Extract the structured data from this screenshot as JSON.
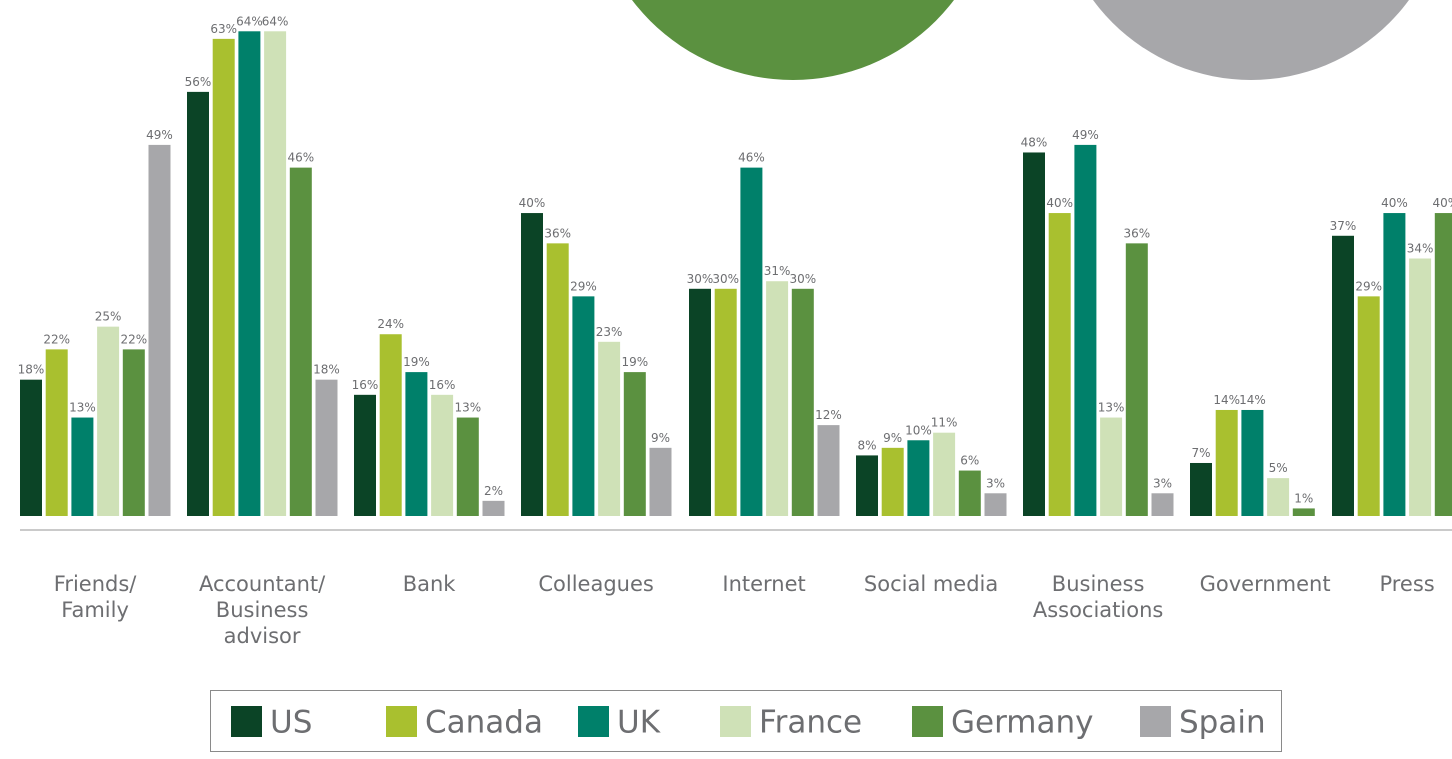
{
  "chart_data": {
    "type": "bar",
    "categories": [
      "Friends/\nFamily",
      "Accountant/\nBusiness\nadvisor",
      "Bank",
      "Colleagues",
      "Internet",
      "Social media",
      "Business\nAssociations",
      "Government",
      "Press"
    ],
    "ylim": [
      0,
      68
    ],
    "series": [
      {
        "name": "US",
        "color": "#0b4426",
        "values": [
          18,
          56,
          16,
          40,
          30,
          8,
          48,
          7,
          37
        ],
        "value_labels": [
          "18%",
          "56%",
          "16%",
          "40%",
          "30%",
          "8%",
          "48%",
          "7%",
          "37%"
        ]
      },
      {
        "name": "Canada",
        "color": "#a9c02f",
        "values": [
          22,
          63,
          24,
          36,
          30,
          9,
          40,
          14,
          29
        ],
        "value_labels": [
          "22%",
          "63%",
          "24%",
          "36%",
          "30%",
          "9%",
          "40%",
          "14%",
          "29%"
        ]
      },
      {
        "name": "UK",
        "color": "#00806a",
        "values": [
          13,
          64,
          19,
          29,
          46,
          10,
          49,
          14,
          40
        ],
        "value_labels": [
          "13%",
          "64%",
          "19%",
          "29%",
          "46%",
          "10%",
          "49%",
          "14%",
          "40%"
        ]
      },
      {
        "name": "France",
        "color": "#cfe1b7",
        "values": [
          25,
          64,
          16,
          23,
          31,
          11,
          13,
          5,
          34
        ],
        "value_labels": [
          "25%",
          "64%",
          "16%",
          "23%",
          "31%",
          "11%",
          "13%",
          "5%",
          "34%"
        ]
      },
      {
        "name": "Germany",
        "color": "#5b9140",
        "values": [
          22,
          46,
          13,
          19,
          30,
          6,
          36,
          1,
          40
        ],
        "value_labels": [
          "22%",
          "46%",
          "13%",
          "19%",
          "30%",
          "6%",
          "36%",
          "1%",
          "40%"
        ]
      },
      {
        "name": "Spain",
        "color": "#a7a7aa",
        "values": [
          49,
          18,
          2,
          9,
          12,
          3,
          3,
          null,
          null
        ],
        "value_labels": [
          "49%",
          "18%",
          "2%",
          "9%",
          "12%",
          "3%",
          "3%",
          null,
          null
        ]
      }
    ]
  }
}
